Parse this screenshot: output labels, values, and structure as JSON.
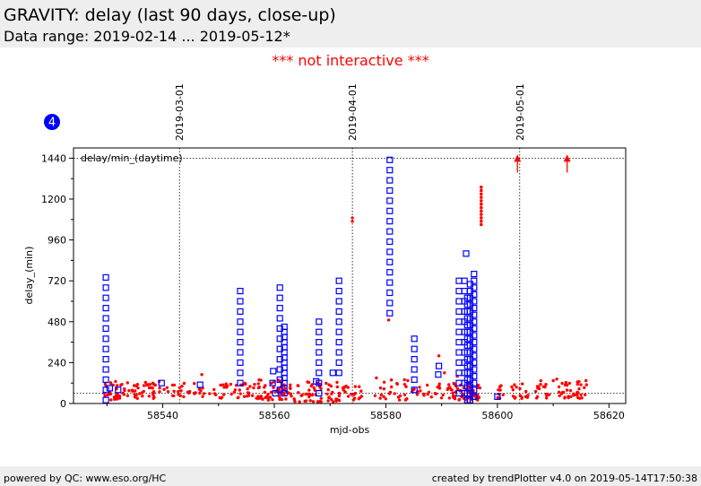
{
  "header": {
    "title": "GRAVITY: delay (last 90 days, close-up)",
    "subtitle": "Data range: 2019-02-14 ... 2019-05-12*"
  },
  "notice": "*** not interactive ***",
  "badge": "4",
  "footer": {
    "left": "powered by QC: www.eso.org/HC",
    "right": "created by trendPlotter v4.0 on 2019-05-14T17:50:38"
  },
  "colors": {
    "blue": "#0000ff",
    "red": "#ff0000"
  },
  "chart_data": {
    "type": "scatter",
    "title": "",
    "xlabel": "mjd-obs",
    "ylabel": "delay_(min)",
    "panel_label": "delay/min_(daytime)",
    "xlim": [
      58524,
      58623
    ],
    "ylim": [
      0,
      1500
    ],
    "xticks": [
      58540,
      58560,
      58580,
      58600,
      58620
    ],
    "xtick_labels": [
      "58540",
      "58560",
      "58580",
      "58600",
      "58620"
    ],
    "yticks": [
      0,
      240,
      480,
      720,
      960,
      1200,
      1440
    ],
    "ytick_labels": [
      "0",
      "240",
      "480",
      "720",
      "960",
      "1200",
      "1440"
    ],
    "reference_lines_y": [
      60,
      1440
    ],
    "date_markers": [
      {
        "x": 58543.0,
        "label": "2019-03-01"
      },
      {
        "x": 58574.0,
        "label": "2019-04-01"
      },
      {
        "x": 58604.0,
        "label": "2019-05-01"
      }
    ],
    "out_of_range_markers_x": [
      58603.6,
      58612.5
    ],
    "blue_columns": [
      {
        "x": 58529.8,
        "ymin": 20,
        "ymax": 740,
        "step": 60
      },
      {
        "x": 58553.9,
        "ymin": 120,
        "ymax": 670,
        "step": 60
      },
      {
        "x": 58561.0,
        "ymin": 80,
        "ymax": 680,
        "step": 60
      },
      {
        "x": 58561.8,
        "ymin": 60,
        "ymax": 470,
        "step": 30
      },
      {
        "x": 58568.0,
        "ymin": 60,
        "ymax": 490,
        "step": 60
      },
      {
        "x": 58571.6,
        "ymin": 180,
        "ymax": 770,
        "step": 60
      },
      {
        "x": 58580.7,
        "ymin": 530,
        "ymax": 1430,
        "step": 60
      },
      {
        "x": 58585.1,
        "ymin": 80,
        "ymax": 390,
        "step": 60
      },
      {
        "x": 58593.1,
        "ymin": 60,
        "ymax": 760,
        "step": 60
      },
      {
        "x": 58594.1,
        "ymin": 60,
        "ymax": 770,
        "step": 60
      },
      {
        "x": 58594.6,
        "ymin": 20,
        "ymax": 640,
        "step": 40
      },
      {
        "x": 58595.1,
        "ymin": 20,
        "ymax": 700,
        "step": 40
      },
      {
        "x": 58595.8,
        "ymin": 40,
        "ymax": 760,
        "step": 40
      }
    ],
    "blue_points": [
      {
        "x": 58530.5,
        "y": 90
      },
      {
        "x": 58532.0,
        "y": 80
      },
      {
        "x": 58539.8,
        "y": 120
      },
      {
        "x": 58546.7,
        "y": 110
      },
      {
        "x": 58559.7,
        "y": 120
      },
      {
        "x": 58559.8,
        "y": 190
      },
      {
        "x": 58560.2,
        "y": 60
      },
      {
        "x": 58567.5,
        "y": 130
      },
      {
        "x": 58570.5,
        "y": 180
      },
      {
        "x": 58589.5,
        "y": 220
      },
      {
        "x": 58589.4,
        "y": 170
      },
      {
        "x": 58594.4,
        "y": 880
      },
      {
        "x": 58600.0,
        "y": 40
      }
    ],
    "red_clusters": [
      {
        "x0": 58529,
        "x1": 58533,
        "ymin": 20,
        "ymax": 130,
        "n": 30
      },
      {
        "x0": 58533,
        "x1": 58541,
        "ymin": 30,
        "ymax": 130,
        "n": 45
      },
      {
        "x0": 58541,
        "x1": 58549,
        "ymin": 40,
        "ymax": 120,
        "n": 28
      },
      {
        "x0": 58549,
        "x1": 58557,
        "ymin": 30,
        "ymax": 120,
        "n": 38
      },
      {
        "x0": 58557,
        "x1": 58563,
        "ymin": 20,
        "ymax": 140,
        "n": 55
      },
      {
        "x0": 58563,
        "x1": 58572,
        "ymin": 10,
        "ymax": 130,
        "n": 60
      },
      {
        "x0": 58572,
        "x1": 58576,
        "ymin": 20,
        "ymax": 120,
        "n": 18
      },
      {
        "x0": 58578,
        "x1": 58584,
        "ymin": 20,
        "ymax": 140,
        "n": 25
      },
      {
        "x0": 58584,
        "x1": 58592,
        "ymin": 30,
        "ymax": 120,
        "n": 28
      },
      {
        "x0": 58592,
        "x1": 58597,
        "ymin": 20,
        "ymax": 130,
        "n": 50
      },
      {
        "x0": 58600,
        "x1": 58606,
        "ymin": 30,
        "ymax": 130,
        "n": 25
      },
      {
        "x0": 58606,
        "x1": 58612,
        "ymin": 30,
        "ymax": 150,
        "n": 25
      },
      {
        "x0": 58612,
        "x1": 58616,
        "ymin": 30,
        "ymax": 140,
        "n": 30
      }
    ],
    "red_points": [
      {
        "x": 58547.0,
        "y": 170
      },
      {
        "x": 58574.0,
        "y": 1090
      },
      {
        "x": 58574.0,
        "y": 1070
      },
      {
        "x": 58580.5,
        "y": 490
      },
      {
        "x": 58589.5,
        "y": 280
      },
      {
        "x": 58590.5,
        "y": 180
      },
      {
        "x": 58592.8,
        "y": 160
      },
      {
        "x": 58578.3,
        "y": 150
      }
    ],
    "red_column": {
      "x": 58597.1,
      "ymin": 1050,
      "ymax": 1280,
      "step": 20
    }
  }
}
